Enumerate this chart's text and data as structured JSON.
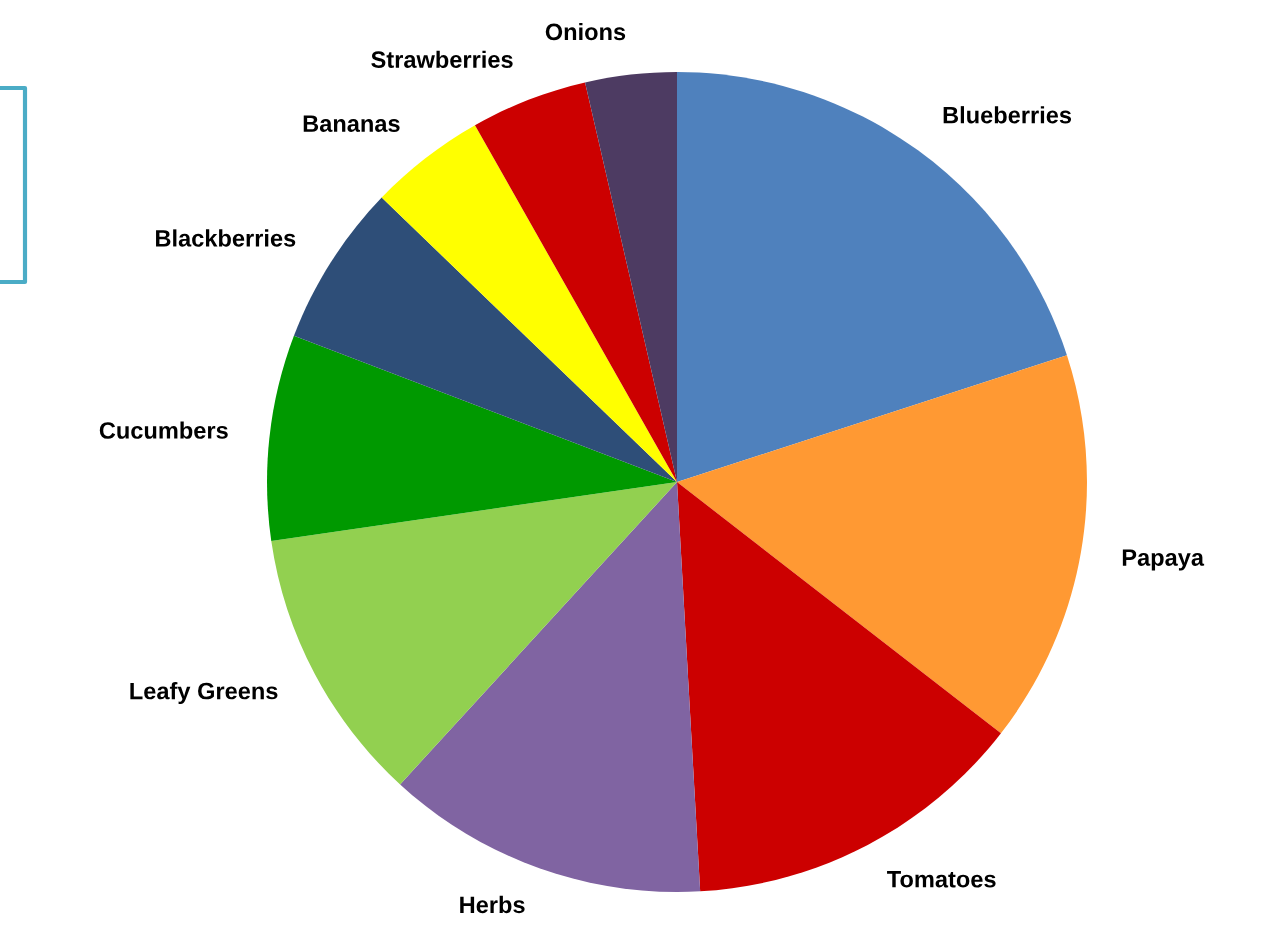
{
  "chart_data": {
    "type": "pie",
    "categories": [
      "Blueberries",
      "Papaya",
      "Tomatoes",
      "Herbs",
      "Leafy Greens",
      "Cucumbers",
      "Blackberries",
      "Bananas",
      "Strawberries",
      "Onions"
    ],
    "values": [
      20.0,
      15.5,
      13.6,
      12.7,
      10.9,
      8.1,
      6.4,
      4.6,
      4.6,
      3.6
    ],
    "colors": [
      "#4f81bd",
      "#ff9933",
      "#cc0000",
      "#8064a2",
      "#92d050",
      "#009900",
      "#2e4e78",
      "#ffff00",
      "#cc0000",
      "#4d3b62"
    ],
    "legend": false
  }
}
